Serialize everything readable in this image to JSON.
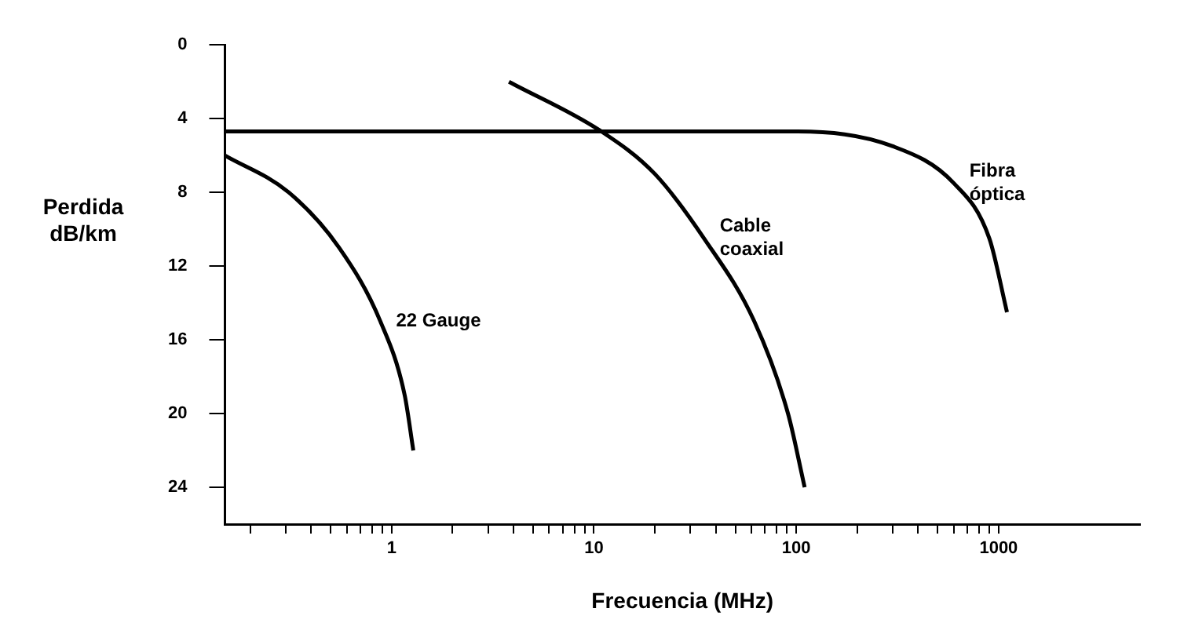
{
  "chart_data": {
    "type": "line",
    "ylabel": "Perdida\ndB/km",
    "xlabel": "Frecuencia (MHz)",
    "log": "x",
    "grid": false,
    "legend": false,
    "marker": "none",
    "line_style": "solid",
    "xlim": [
      0.15,
      5000
    ],
    "xticks": [
      {
        "value": 0.2,
        "label": null
      },
      {
        "value": 0.3,
        "label": null
      },
      {
        "value": 0.4,
        "label": null
      },
      {
        "value": 0.5,
        "label": null
      },
      {
        "value": 0.6,
        "label": null
      },
      {
        "value": 0.7,
        "label": null
      },
      {
        "value": 0.8,
        "label": null
      },
      {
        "value": 0.9,
        "label": null
      },
      1,
      {
        "value": 2,
        "label": null
      },
      {
        "value": 3,
        "label": null
      },
      {
        "value": 4,
        "label": null
      },
      {
        "value": 5,
        "label": null
      },
      {
        "value": 6,
        "label": null
      },
      {
        "value": 7,
        "label": null
      },
      {
        "value": 8,
        "label": null
      },
      {
        "value": 9,
        "label": null
      },
      10,
      {
        "value": 20,
        "label": null
      },
      {
        "value": 30,
        "label": null
      },
      {
        "value": 40,
        "label": null
      },
      {
        "value": 50,
        "label": null
      },
      {
        "value": 60,
        "label": null
      },
      {
        "value": 70,
        "label": null
      },
      {
        "value": 80,
        "label": null
      },
      {
        "value": 90,
        "label": null
      },
      100,
      {
        "value": 200,
        "label": null
      },
      {
        "value": 300,
        "label": null
      },
      {
        "value": 400,
        "label": null
      },
      {
        "value": 500,
        "label": null
      },
      {
        "value": 600,
        "label": null
      },
      {
        "value": 700,
        "label": null
      },
      {
        "value": 800,
        "label": null
      },
      {
        "value": 900,
        "label": null
      },
      1000
    ],
    "ylim": [
      26,
      0
    ],
    "yticks": [
      0,
      4,
      8,
      12,
      16,
      20,
      24
    ],
    "series": [
      {
        "name": "22 Gauge",
        "color": "#000000",
        "x": [
          0.15,
          0.31,
          0.55,
          0.88,
          1.16,
          1.28
        ],
        "values": [
          6,
          8,
          11,
          15,
          19,
          22
        ]
      },
      {
        "name": "Cable\ncoaxial",
        "color": "#000000",
        "x": [
          3.8,
          10.9,
          20,
          35,
          62,
          91,
          110
        ],
        "values": [
          2,
          4.7,
          7,
          10.5,
          15,
          20,
          24
        ]
      },
      {
        "name": "Fibra\nóptica",
        "color": "#000000",
        "x": [
          0.15,
          100,
          300,
          600,
          900,
          1100
        ],
        "values": [
          4.7,
          4.7,
          5.5,
          7.5,
          10.5,
          14.5
        ]
      }
    ]
  }
}
